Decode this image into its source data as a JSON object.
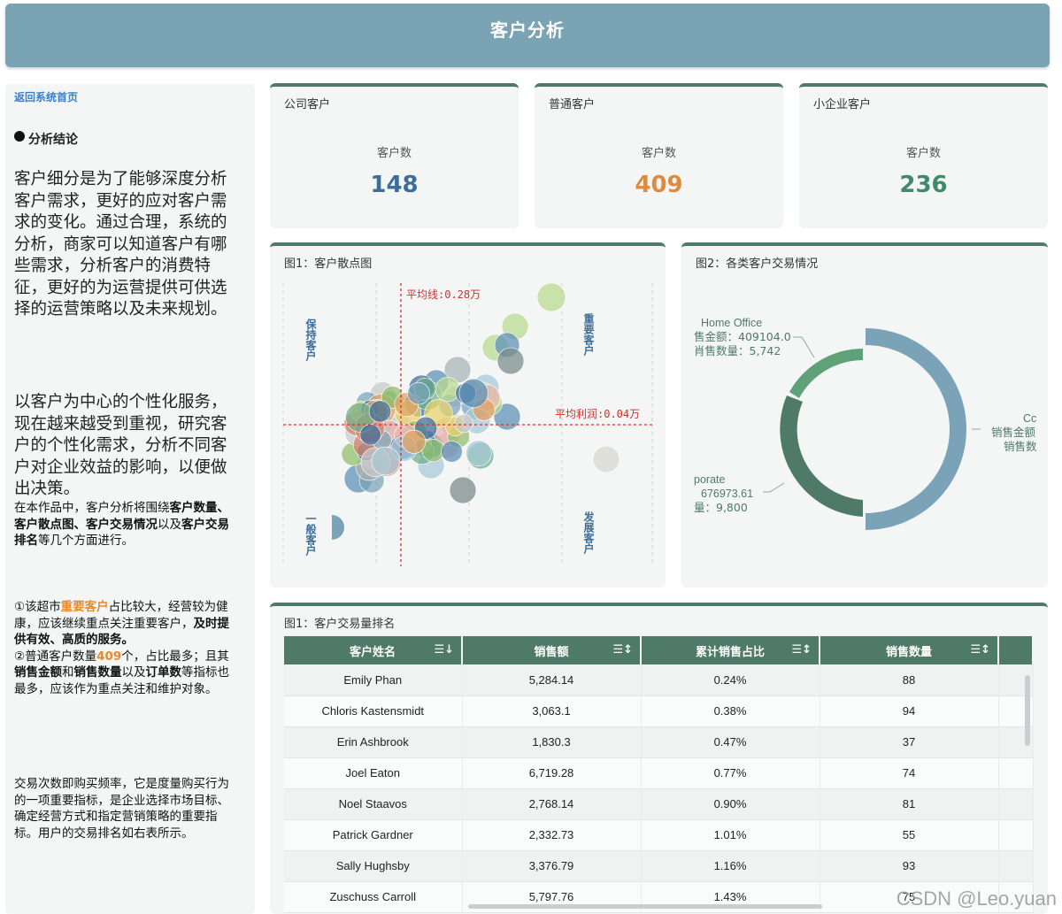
{
  "header": {
    "title": "客户分析"
  },
  "sidebar": {
    "back_link": "返回系统首页",
    "conclusion_heading": "分析结论",
    "para1": "客户细分是为了能够深度分析客户需求，更好的应对客户需求的变化。通过合理，系统的分析，商家可以知道客户有哪些需求，分析客户的消费特征，更好的为运营提供可供选择的运营策略以及未来规划。",
    "para2": "以客户为中心的个性化服务，现在越来越受到重视，研究客户的个性化需求，分析不同客户对企业效益的影响，以便做出决策。",
    "para3": {
      "a": "在本作品中，客户分析将围绕",
      "b": "客户数量、客户散点图、客户交易情况",
      "c": "以及",
      "d": "客户交易排名",
      "e": "等几个方面进行。"
    },
    "para4": {
      "a": "①该超市",
      "b": "重要客户",
      "c": "占比较大，经营较为健康，应该继续重点关注重要客户，",
      "d": "及时提供有效、高质的服务。",
      "e": "②普通客户数量",
      "f": "409",
      "g": "个，占比最多；且其",
      "h": "销售金额",
      "i": "和",
      "j": "销售数量",
      "k": "以及",
      "l": "订单数",
      "m": "等指标也最多，应该作为重点关注和维护对象。"
    },
    "para5": "交易次数即购买频率，它是度量购买行为的一项重要指标，是企业选择市场目标、确定经营方式和指定营销策略的重要指标。用户的交易排名如右表所示。"
  },
  "kpis": [
    {
      "title": "公司客户",
      "label": "客户数",
      "value": "148",
      "color": "#3d6e9a"
    },
    {
      "title": "普通客户",
      "label": "客户数",
      "value": "409",
      "color": "#e08a3c"
    },
    {
      "title": "小企业客户",
      "label": "客户数",
      "value": "236",
      "color": "#3f8a6a"
    }
  ],
  "scatter": {
    "title": "图1：客户散点图",
    "avg_line_label": "平均线:0.28万",
    "avg_profit_label": "平均利润:0.04万",
    "quadrants": {
      "top_left": "保持客户",
      "top_right": "重要客户",
      "bottom_left": "一般客户",
      "bottom_right": "发展客户"
    }
  },
  "donut": {
    "title": "图2：各类客户交易情况",
    "label_home_office": {
      "name": "Home Office",
      "amount": "售金额：409104.0",
      "qty": "肖售数量：5,742"
    },
    "label_corporate": {
      "name": "porate",
      "amount": "676973.61",
      "qty": "量：9,800"
    },
    "label_consumer": {
      "name": "Cc",
      "amount": "销售金额",
      "qty": "销售数"
    }
  },
  "ranking": {
    "title": "图1：客户交易量排名",
    "columns": [
      "客户姓名",
      "销售额",
      "累计销售占比",
      "销售数量"
    ],
    "rows": [
      [
        "Emily Phan",
        "5,284.14",
        "0.24%",
        "88"
      ],
      [
        "Chloris Kastensmidt",
        "3,063.1",
        "0.38%",
        "94"
      ],
      [
        "Erin Ashbrook",
        "1,830.3",
        "0.47%",
        "37"
      ],
      [
        "Joel Eaton",
        "6,719.28",
        "0.77%",
        "74"
      ],
      [
        "Noel Staavos",
        "2,768.14",
        "0.90%",
        "81"
      ],
      [
        "Patrick Gardner",
        "2,332.73",
        "1.01%",
        "55"
      ],
      [
        "Sally Hughsby",
        "3,376.79",
        "1.16%",
        "93"
      ],
      [
        "Zuschuss Carroll",
        "5,797.76",
        "1.43%",
        "75"
      ]
    ]
  },
  "watermark": "CSDN @Leo.yuan"
}
